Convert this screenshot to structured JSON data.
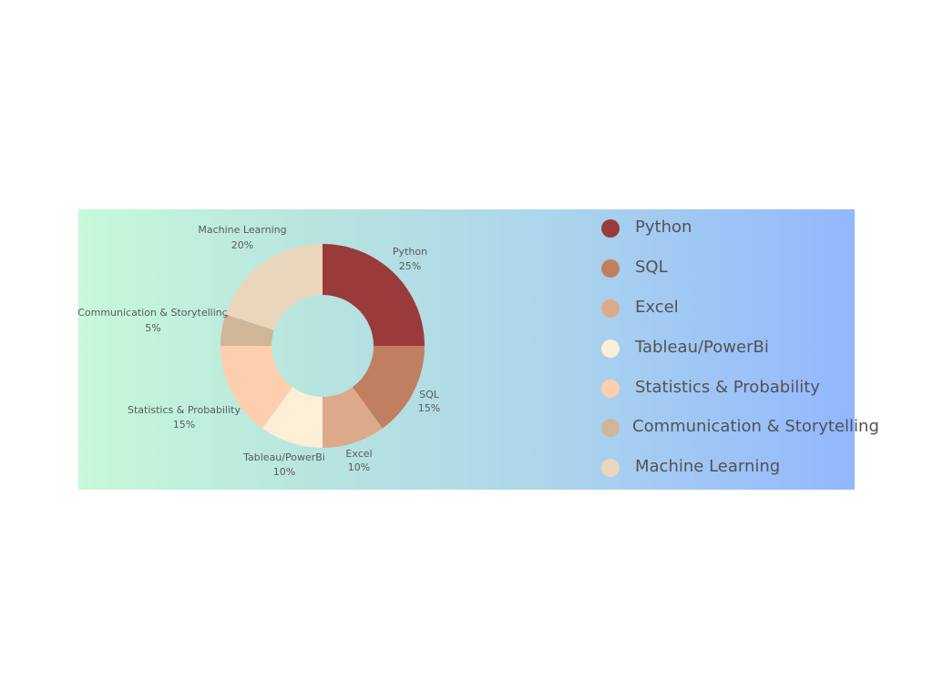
{
  "chart_data": {
    "type": "pie",
    "donut": true,
    "start_angle_deg": 0,
    "direction": "clockwise",
    "slices": [
      {
        "label": "Python",
        "value": 25,
        "value_label": "25%",
        "color": "#9b3a3b"
      },
      {
        "label": "SQL",
        "value": 15,
        "value_label": "15%",
        "color": "#c17f62"
      },
      {
        "label": "Excel",
        "value": 10,
        "value_label": "10%",
        "color": "#dcaa8a"
      },
      {
        "label": "Tableau/PowerBi",
        "value": 10,
        "value_label": "10%",
        "color": "#fdeed6"
      },
      {
        "label": "Statistics & Probability",
        "value": 15,
        "value_label": "15%",
        "color": "#fecfae"
      },
      {
        "label": "Communication & Storytelling",
        "value": 5,
        "value_label": "5%",
        "color": "#d1b597"
      },
      {
        "label": "Machine Learning",
        "value": 20,
        "value_label": "20%",
        "color": "#ead6bc"
      }
    ],
    "legend": {
      "placement": "right",
      "items": [
        "Python",
        "SQL",
        "Excel",
        "Tableau/PowerBi",
        "Statistics & Probability",
        "Communication & Storytelling",
        "Machine Learning"
      ]
    }
  }
}
